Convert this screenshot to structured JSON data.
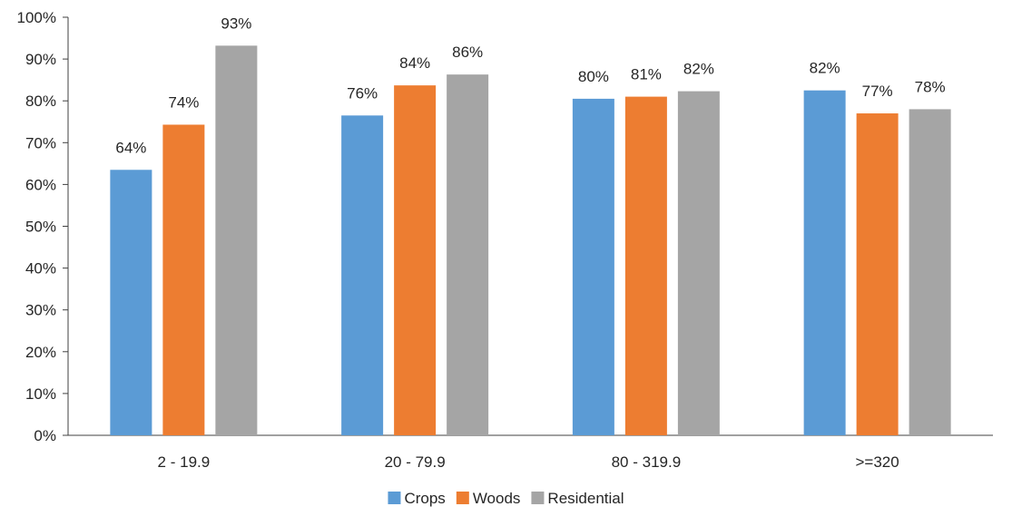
{
  "chart_data": {
    "type": "bar",
    "title": "",
    "xlabel": "",
    "ylabel": "",
    "categories": [
      "2 - 19.9",
      "20 - 79.9",
      "80 - 319.9",
      ">=320"
    ],
    "ylim": [
      0,
      100
    ],
    "yticks": [
      0,
      10,
      20,
      30,
      40,
      50,
      60,
      70,
      80,
      90,
      100
    ],
    "value_suffix": "%",
    "grid": false,
    "legend_position": "bottom",
    "series": [
      {
        "name": "Crops",
        "color": "#5B9BD5",
        "values": [
          63.5,
          76.5,
          80.5,
          82.5
        ],
        "labels": [
          "64%",
          "76%",
          "80%",
          "82%"
        ]
      },
      {
        "name": "Woods",
        "color": "#ED7D31",
        "values": [
          74.3,
          83.7,
          81.0,
          77.0
        ],
        "labels": [
          "74%",
          "84%",
          "81%",
          "77%"
        ]
      },
      {
        "name": "Residential",
        "color": "#A5A5A5",
        "values": [
          93.2,
          86.3,
          82.3,
          78.0
        ],
        "labels": [
          "93%",
          "86%",
          "82%",
          "78%"
        ]
      }
    ]
  }
}
